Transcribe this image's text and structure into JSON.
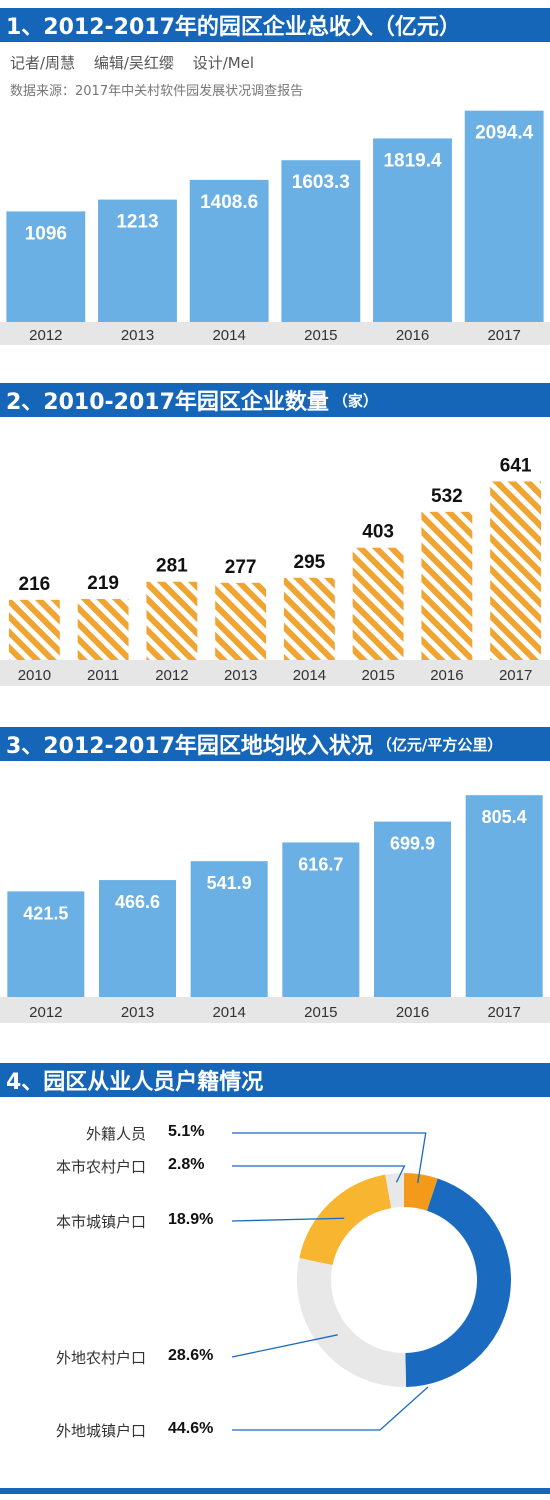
{
  "sections": {
    "s1": {
      "title": "1、2012-2017年的园区企业总收入（亿元）"
    },
    "s2": {
      "title": "2、2010-2017年园区企业数量",
      "unit": "（家）"
    },
    "s3": {
      "title": "3、2012-2017年园区地均收入状况",
      "unit": "（亿元/平方公里）"
    },
    "s4": {
      "title": "4、园区从业人员户籍情况"
    }
  },
  "credits": {
    "reporter": "记者/周慧",
    "editor": "编辑/吴红缨",
    "design": "设计/Mel"
  },
  "source": "数据来源：2017年中关村软件园发展状况调查报告",
  "colors": {
    "header": "#1565b8",
    "bar_blue": "#6ab0e4",
    "axis_band": "#e6e6e6",
    "stripe_orange": "#f0a532",
    "donut_dark_blue": "#1a6bbf",
    "donut_orange": "#f39a1a",
    "donut_yellow": "#f7b530",
    "donut_light_gray": "#e8e8e8"
  },
  "chart_data": [
    {
      "type": "bar",
      "title": "1、2012-2017年的园区企业总收入（亿元）",
      "categories": [
        "2012",
        "2013",
        "2014",
        "2015",
        "2016",
        "2017"
      ],
      "values": [
        1096,
        1213,
        1408.6,
        1603.3,
        1819.4,
        2094.4
      ],
      "labels": [
        "1096",
        "1213",
        "1408.6",
        "1603.3",
        "1819.4",
        "2094.4"
      ],
      "ylim": [
        0,
        2200
      ]
    },
    {
      "type": "bar",
      "title": "2、2010-2017年园区企业数量（家）",
      "categories": [
        "2010",
        "2011",
        "2012",
        "2013",
        "2014",
        "2015",
        "2016",
        "2017"
      ],
      "values": [
        216,
        219,
        281,
        277,
        295,
        403,
        532,
        641
      ],
      "labels": [
        "216",
        "219",
        "281",
        "277",
        "295",
        "403",
        "532",
        "641"
      ],
      "ylim": [
        0,
        700
      ]
    },
    {
      "type": "bar",
      "title": "3、2012-2017年园区地均收入状况（亿元/平方公里）",
      "categories": [
        "2012",
        "2013",
        "2014",
        "2015",
        "2016",
        "2017"
      ],
      "values": [
        421.5,
        466.6,
        541.9,
        616.7,
        699.9,
        805.4
      ],
      "labels": [
        "421.5",
        "466.6",
        "541.9",
        "616.7",
        "699.9",
        "805.4"
      ],
      "ylim": [
        0,
        850
      ]
    },
    {
      "type": "pie",
      "title": "4、园区从业人员户籍情况",
      "categories": [
        "外籍人员",
        "本市农村户口",
        "本市城镇户口",
        "外地农村户口",
        "外地城镇户口"
      ],
      "values": [
        5.1,
        2.8,
        18.9,
        28.6,
        44.6
      ],
      "labels": [
        "5.1%",
        "2.8%",
        "18.9%",
        "28.6%",
        "44.6%"
      ]
    }
  ]
}
